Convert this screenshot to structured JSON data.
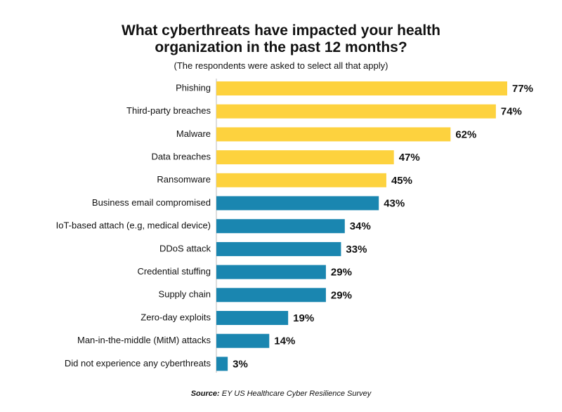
{
  "chart_data": {
    "type": "bar",
    "title": "What cyberthreats have impacted your health organization in the past 12 months?",
    "subtitle": "(The respondents were asked to select all that apply)",
    "categories": [
      "Phishing",
      "Third-party breaches",
      "Malware",
      "Data breaches",
      "Ransomware",
      "Business email compromised",
      "IoT-based attach (e.g, medical device)",
      "DDoS attack",
      "Credential stuffing",
      "Supply chain",
      "Zero-day exploits",
      "Man-in-the-middle (MitM) attacks",
      "Did not experience any cyberthreats"
    ],
    "values": [
      77,
      74,
      62,
      47,
      45,
      43,
      34,
      33,
      29,
      29,
      19,
      14,
      3
    ],
    "value_labels": [
      "77%",
      "74%",
      "62%",
      "47%",
      "45%",
      "43%",
      "34%",
      "33%",
      "29%",
      "29%",
      "19%",
      "14%",
      "3%"
    ],
    "colors": [
      "#fdd23e",
      "#fdd23e",
      "#fdd23e",
      "#fdd23e",
      "#fdd23e",
      "#1a86b0",
      "#1a86b0",
      "#1a86b0",
      "#1a86b0",
      "#1a86b0",
      "#1a86b0",
      "#1a86b0",
      "#1a86b0"
    ],
    "orientation": "horizontal",
    "source_label": "Source:",
    "source": "EY US Healthcare Cyber Resilience Survey"
  }
}
